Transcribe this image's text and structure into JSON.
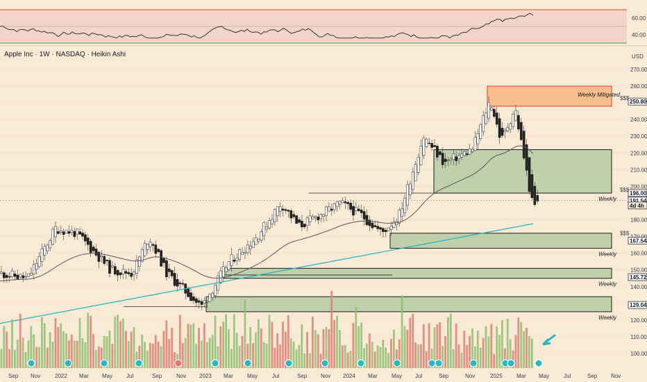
{
  "chart_data": {
    "type": "candlestick",
    "title": "Apple Inc · 1W · NASDAQ · Heikin Ashi",
    "currency": "USD",
    "price_axis": {
      "ylim": [
        95,
        275
      ],
      "ticks": [
        100,
        110,
        120,
        130,
        140,
        150,
        160,
        170,
        180,
        190,
        200,
        210,
        220,
        230,
        240,
        250,
        260,
        270
      ]
    },
    "rsi_axis": {
      "ylim": [
        30,
        72
      ],
      "ticks": [
        40,
        60
      ],
      "upper_band": 70,
      "lower_band": 30,
      "mid": 50
    },
    "x_axis": {
      "labels": [
        "Sep",
        "Nov",
        "2022",
        "Mar",
        "May",
        "Jul",
        "Sep",
        "Nov",
        "2023",
        "Mar",
        "May",
        "Jul",
        "Sep",
        "Nov",
        "2024",
        "Mar",
        "May",
        "Jul",
        "Sep",
        "Nov",
        "2025",
        "Mar",
        "May",
        "Jul",
        "Sep",
        "Nov"
      ]
    },
    "price_tags": [
      {
        "value": "250.80",
        "color": "#131722"
      },
      {
        "value": "196.00",
        "color": "#131722"
      },
      {
        "value": "191.54",
        "color": "#131722"
      },
      {
        "value": "4d 4h",
        "color": "#131722"
      },
      {
        "value": "167.54",
        "color": "#131722"
      },
      {
        "value": "145.72",
        "color": "#131722"
      },
      {
        "value": "129.04",
        "color": "#131722"
      }
    ],
    "zones": [
      {
        "name": "Weekly Mitigated",
        "top": 260,
        "bottom": 248,
        "type": "supply"
      },
      {
        "name": "Weekly",
        "top": 222,
        "bottom": 196,
        "type": "demand"
      },
      {
        "name": "Weekly",
        "top": 172,
        "bottom": 163,
        "type": "demand"
      },
      {
        "name": "Weekly",
        "top": 151,
        "bottom": 145,
        "type": "demand"
      },
      {
        "name": "Weekly",
        "top": 134,
        "bottom": 125,
        "type": "demand"
      }
    ],
    "markers": {
      "sss": "$$$"
    },
    "colors": {
      "up": "#8fbf72",
      "down": "#e07c74",
      "ma_fast": "#555555",
      "ma_slow": "#2cb6c4",
      "zone_fill": "#a9c59a",
      "supply_fill": "#f5b37a",
      "supply_border": "#e53935"
    }
  }
}
